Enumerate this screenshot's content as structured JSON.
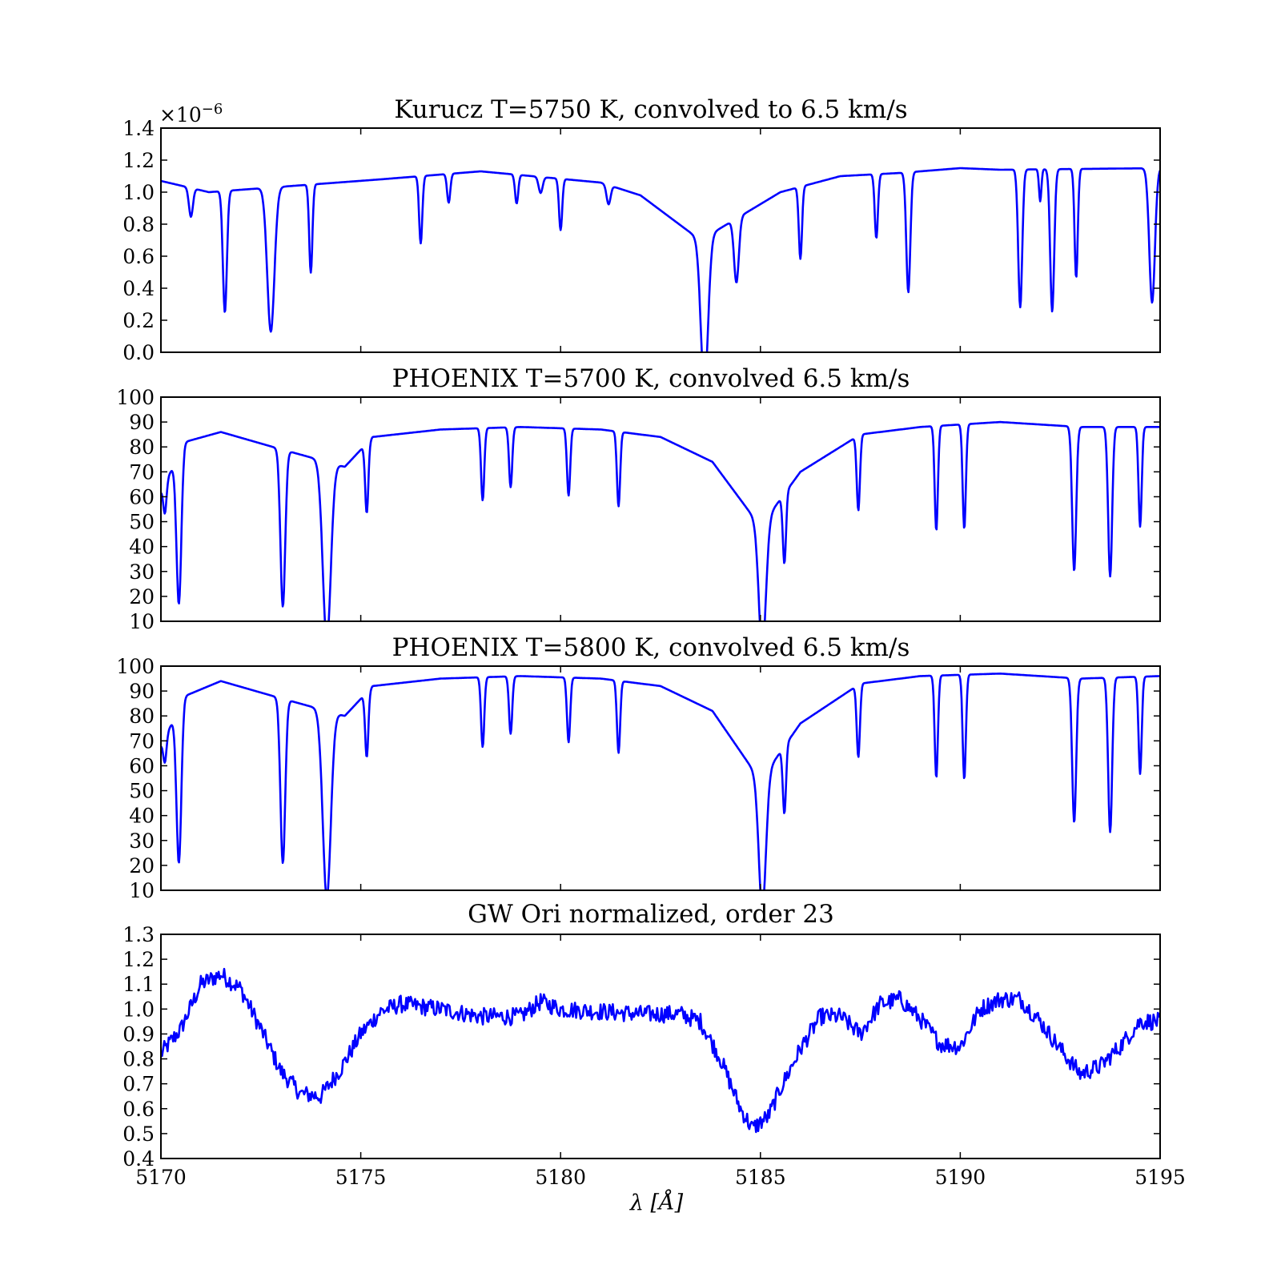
{
  "colors": {
    "line": "#0000ff",
    "axes": "#000000",
    "background": "#ffffff"
  },
  "xlabel": "λ   [Å]",
  "chart_data": [
    {
      "type": "line",
      "title": "Kurucz T=5750 K, convolved to 6.5 km/s",
      "offset_text": "×10",
      "offset_exponent": "−6",
      "xlim": [
        5170,
        5195
      ],
      "ylim": [
        0.0,
        1.4
      ],
      "yticks": [
        0.0,
        0.2,
        0.4,
        0.6,
        0.8,
        1.0,
        1.2,
        1.4
      ],
      "ytick_labels": [
        "0.0",
        "0.2",
        "0.4",
        "0.6",
        "0.8",
        "1.0",
        "1.2",
        "1.4"
      ],
      "continuum": [
        [
          5170,
          1.07
        ],
        [
          5171.2,
          1.0
        ],
        [
          5175.5,
          1.08
        ],
        [
          5178,
          1.13
        ],
        [
          5181,
          1.06
        ],
        [
          5182,
          0.98
        ],
        [
          5183.5,
          0.7
        ],
        [
          5185.5,
          1.0
        ],
        [
          5187,
          1.1
        ],
        [
          5188.5,
          1.12
        ],
        [
          5190,
          1.15
        ],
        [
          5191,
          1.14
        ],
        [
          5195,
          1.15
        ]
      ],
      "lines": [
        [
          5170.75,
          0.18,
          0.05
        ],
        [
          5171.6,
          0.76,
          0.05
        ],
        [
          5172.75,
          0.9,
          0.09
        ],
        [
          5173.75,
          0.55,
          0.04
        ],
        [
          5176.5,
          0.42,
          0.04
        ],
        [
          5177.2,
          0.18,
          0.04
        ],
        [
          5178.9,
          0.18,
          0.04
        ],
        [
          5179.5,
          0.1,
          0.05
        ],
        [
          5180.0,
          0.32,
          0.04
        ],
        [
          5181.2,
          0.12,
          0.05
        ],
        [
          5183.6,
          0.93,
          0.09
        ],
        [
          5184.4,
          0.4,
          0.06
        ],
        [
          5186.0,
          0.45,
          0.04
        ],
        [
          5187.9,
          0.4,
          0.04
        ],
        [
          5188.7,
          0.75,
          0.05
        ],
        [
          5191.5,
          0.86,
          0.05
        ],
        [
          5192.0,
          0.2,
          0.03
        ],
        [
          5192.3,
          0.89,
          0.05
        ],
        [
          5192.9,
          0.68,
          0.04
        ],
        [
          5194.8,
          0.84,
          0.07
        ]
      ]
    },
    {
      "type": "line",
      "title": "PHOENIX T=5700 K, convolved 6.5 km/s",
      "xlim": [
        5170,
        5195
      ],
      "ylim": [
        10,
        100
      ],
      "yticks": [
        10,
        20,
        30,
        40,
        50,
        60,
        70,
        80,
        90,
        100
      ],
      "ytick_labels": [
        "10",
        "20",
        "30",
        "40",
        "50",
        "60",
        "70",
        "80",
        "90",
        "100"
      ],
      "continuum": [
        [
          5170,
          62
        ],
        [
          5170.6,
          82
        ],
        [
          5171.5,
          86
        ],
        [
          5172.8,
          80
        ],
        [
          5174.6,
          72
        ],
        [
          5175.3,
          84
        ],
        [
          5177,
          87
        ],
        [
          5179,
          88
        ],
        [
          5181,
          87
        ],
        [
          5182.5,
          84
        ],
        [
          5183.8,
          74
        ],
        [
          5185.0,
          48
        ],
        [
          5186.0,
          70
        ],
        [
          5187.5,
          85
        ],
        [
          5189,
          88
        ],
        [
          5191,
          90
        ],
        [
          5193,
          88
        ],
        [
          5195,
          88
        ]
      ],
      "lines": [
        [
          5170.1,
          12,
          0.04
        ],
        [
          5170.45,
          60,
          0.06
        ],
        [
          5173.05,
          63,
          0.06
        ],
        [
          5174.15,
          72,
          0.1
        ],
        [
          5175.15,
          28,
          0.04
        ],
        [
          5178.05,
          29,
          0.04
        ],
        [
          5178.75,
          24,
          0.04
        ],
        [
          5180.2,
          27,
          0.04
        ],
        [
          5181.45,
          30,
          0.04
        ],
        [
          5185.05,
          50,
          0.09
        ],
        [
          5185.6,
          28,
          0.04
        ],
        [
          5187.45,
          30,
          0.04
        ],
        [
          5189.4,
          42,
          0.04
        ],
        [
          5190.1,
          42,
          0.04
        ],
        [
          5192.85,
          58,
          0.05
        ],
        [
          5193.75,
          60,
          0.05
        ],
        [
          5194.5,
          40,
          0.04
        ]
      ]
    },
    {
      "type": "line",
      "title": "PHOENIX T=5800 K, convolved 6.5 km/s",
      "xlim": [
        5170,
        5195
      ],
      "ylim": [
        10,
        100
      ],
      "yticks": [
        10,
        20,
        30,
        40,
        50,
        60,
        70,
        80,
        90,
        100
      ],
      "ytick_labels": [
        "10",
        "20",
        "30",
        "40",
        "50",
        "60",
        "70",
        "80",
        "90",
        "100"
      ],
      "continuum": [
        [
          5170,
          68
        ],
        [
          5170.6,
          88
        ],
        [
          5171.5,
          94
        ],
        [
          5172.8,
          88
        ],
        [
          5174.6,
          80
        ],
        [
          5175.3,
          92
        ],
        [
          5177,
          95
        ],
        [
          5179,
          96
        ],
        [
          5181,
          95
        ],
        [
          5182.5,
          92
        ],
        [
          5183.8,
          82
        ],
        [
          5185.0,
          54
        ],
        [
          5186.0,
          77
        ],
        [
          5187.5,
          93
        ],
        [
          5189,
          96
        ],
        [
          5191,
          97
        ],
        [
          5193,
          95
        ],
        [
          5195,
          96
        ]
      ],
      "lines": [
        [
          5170.1,
          10,
          0.04
        ],
        [
          5170.45,
          62,
          0.06
        ],
        [
          5173.05,
          66,
          0.06
        ],
        [
          5174.15,
          75,
          0.1
        ],
        [
          5175.15,
          26,
          0.04
        ],
        [
          5178.05,
          28,
          0.04
        ],
        [
          5178.75,
          23,
          0.04
        ],
        [
          5180.2,
          26,
          0.04
        ],
        [
          5181.45,
          29,
          0.04
        ],
        [
          5185.05,
          52,
          0.09
        ],
        [
          5185.6,
          27,
          0.04
        ],
        [
          5187.45,
          29,
          0.04
        ],
        [
          5189.4,
          41,
          0.04
        ],
        [
          5190.1,
          42,
          0.04
        ],
        [
          5192.85,
          58,
          0.05
        ],
        [
          5193.75,
          62,
          0.05
        ],
        [
          5194.5,
          39,
          0.04
        ]
      ]
    },
    {
      "type": "line",
      "title": "GW Ori normalized, order 23",
      "xlim": [
        5170,
        5195
      ],
      "ylim": [
        0.4,
        1.3
      ],
      "yticks": [
        0.4,
        0.5,
        0.6,
        0.7,
        0.8,
        0.9,
        1.0,
        1.1,
        1.2,
        1.3
      ],
      "ytick_labels": [
        "0.4",
        "0.5",
        "0.6",
        "0.7",
        "0.8",
        "0.9",
        "1.0",
        "1.1",
        "1.2",
        "1.3"
      ],
      "xticks": [
        5170,
        5175,
        5180,
        5185,
        5190,
        5195
      ],
      "xtick_labels": [
        "5170",
        "5175",
        "5180",
        "5185",
        "5190",
        "5195"
      ],
      "noise_amplitude": 0.035,
      "profile": [
        [
          5170,
          0.82
        ],
        [
          5170.5,
          0.92
        ],
        [
          5171.0,
          1.1
        ],
        [
          5171.5,
          1.14
        ],
        [
          5172.0,
          1.08
        ],
        [
          5172.5,
          0.92
        ],
        [
          5173.0,
          0.75
        ],
        [
          5173.5,
          0.66
        ],
        [
          5174.0,
          0.65
        ],
        [
          5174.5,
          0.76
        ],
        [
          5175.0,
          0.9
        ],
        [
          5175.5,
          0.99
        ],
        [
          5176.0,
          1.02
        ],
        [
          5177.0,
          1.0
        ],
        [
          5178.0,
          0.97
        ],
        [
          5179.0,
          0.97
        ],
        [
          5179.5,
          1.03
        ],
        [
          5180.0,
          1.0
        ],
        [
          5181.0,
          0.99
        ],
        [
          5182.0,
          0.98
        ],
        [
          5183.0,
          0.98
        ],
        [
          5183.5,
          0.95
        ],
        [
          5184.0,
          0.8
        ],
        [
          5184.5,
          0.6
        ],
        [
          5184.8,
          0.52
        ],
        [
          5185.2,
          0.57
        ],
        [
          5185.5,
          0.68
        ],
        [
          5186.0,
          0.84
        ],
        [
          5186.5,
          0.97
        ],
        [
          5187.0,
          0.97
        ],
        [
          5187.5,
          0.9
        ],
        [
          5188.0,
          1.02
        ],
        [
          5188.5,
          1.04
        ],
        [
          5189.0,
          0.96
        ],
        [
          5189.5,
          0.86
        ],
        [
          5190.0,
          0.85
        ],
        [
          5190.5,
          1.0
        ],
        [
          5191.0,
          1.04
        ],
        [
          5191.5,
          1.04
        ],
        [
          5192.0,
          0.95
        ],
        [
          5192.5,
          0.84
        ],
        [
          5193.0,
          0.74
        ],
        [
          5193.5,
          0.77
        ],
        [
          5194.0,
          0.85
        ],
        [
          5194.5,
          0.95
        ],
        [
          5195.0,
          0.95
        ]
      ]
    }
  ]
}
